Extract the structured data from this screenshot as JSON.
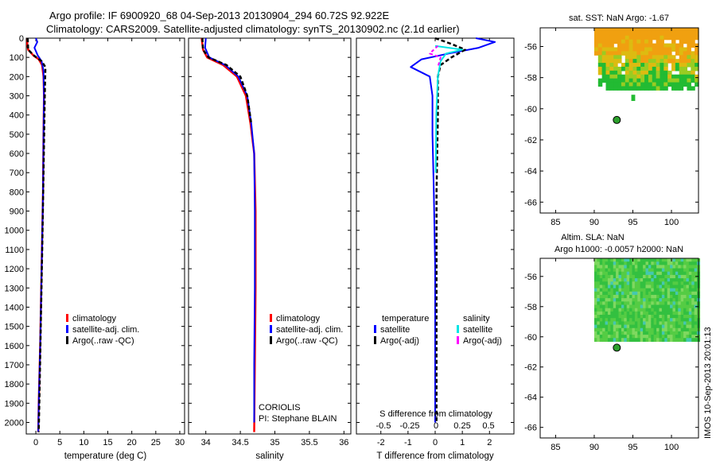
{
  "header": {
    "title_line1": "Argo profile: IF 6900920_68 04-Sep-2013 20130904_294 60.72S 92.922E",
    "title_line2": "Climatology: CARS2009. Satellite-adjusted climatology: synTS_20130902.nc (2.1d earlier)"
  },
  "footer_stamp": "IMOS 10-Sep-2013 20:01:13",
  "colors": {
    "red": "#ff0000",
    "blue": "#0000ff",
    "black": "#000000",
    "cyan": "#00e5e5",
    "magenta": "#ff00ff"
  },
  "chart_data": [
    {
      "type": "line",
      "id": "temperature",
      "xlabel": "temperature (deg C)",
      "xlim": [
        -2,
        31
      ],
      "ylim": [
        2060,
        0
      ],
      "xticks": [
        0,
        5,
        10,
        15,
        20,
        25,
        30
      ],
      "yticks": [
        0,
        100,
        200,
        300,
        400,
        500,
        600,
        700,
        800,
        900,
        1000,
        1100,
        1200,
        1300,
        1400,
        1500,
        1600,
        1700,
        1800,
        1900,
        2000
      ],
      "legend": [
        "climatology",
        "satellite-adj. clim.",
        "Argo(..raw -QC)"
      ],
      "series": [
        {
          "name": "climatology",
          "color": "red",
          "width": 2.5,
          "dash": "",
          "points": [
            [
              -1.7,
              0
            ],
            [
              -1.8,
              30
            ],
            [
              -1.6,
              60
            ],
            [
              -0.5,
              90
            ],
            [
              0.6,
              110
            ],
            [
              1.3,
              140
            ],
            [
              1.6,
              200
            ],
            [
              1.7,
              300
            ],
            [
              1.6,
              500
            ],
            [
              1.5,
              800
            ],
            [
              1.2,
              1200
            ],
            [
              0.9,
              1600
            ],
            [
              0.6,
              1900
            ],
            [
              0.5,
              2050
            ]
          ]
        },
        {
          "name": "satellite-adj. clim.",
          "color": "blue",
          "width": 2,
          "dash": "",
          "points": [
            [
              0,
              0
            ],
            [
              0.3,
              20
            ],
            [
              -0.3,
              50
            ],
            [
              0.4,
              90
            ],
            [
              1.2,
              120
            ],
            [
              1.6,
              170
            ],
            [
              1.7,
              300
            ],
            [
              1.6,
              500
            ],
            [
              1.5,
              800
            ],
            [
              1.2,
              1200
            ],
            [
              0.9,
              1600
            ],
            [
              0.6,
              1900
            ],
            [
              0.5,
              2050
            ]
          ]
        },
        {
          "name": "Argo(..raw -QC)",
          "color": "black",
          "width": 2.5,
          "dash": "5,3",
          "points": [
            [
              -1.7,
              0
            ],
            [
              -1.6,
              60
            ],
            [
              -0.4,
              90
            ],
            [
              1.2,
              120
            ],
            [
              2.0,
              150
            ],
            [
              1.9,
              250
            ],
            [
              1.8,
              400
            ],
            [
              1.6,
              700
            ],
            [
              1.4,
              1000
            ],
            [
              1.1,
              1400
            ],
            [
              0.8,
              1800
            ],
            [
              0.6,
              2050
            ]
          ]
        }
      ]
    },
    {
      "type": "line",
      "id": "salinity",
      "xlabel": "salinity",
      "xlim": [
        33.75,
        36.1
      ],
      "ylim": [
        2060,
        0
      ],
      "xticks": [
        34,
        34.5,
        35,
        35.5,
        36
      ],
      "xtick_labels": [
        "34",
        "34.5",
        "35",
        "35.5",
        "36"
      ],
      "legend": [
        "climatology",
        "satellite-adj. clim.",
        "Argo(..raw -QC)"
      ],
      "annotations": [
        "CORIOLIS",
        "PI: Stephane BLAIN"
      ],
      "series": [
        {
          "name": "climatology",
          "color": "red",
          "width": 2.5,
          "dash": "",
          "points": [
            [
              33.94,
              0
            ],
            [
              33.96,
              60
            ],
            [
              34.02,
              100
            ],
            [
              34.25,
              140
            ],
            [
              34.45,
              200
            ],
            [
              34.58,
              300
            ],
            [
              34.65,
              450
            ],
            [
              34.7,
              600
            ],
            [
              34.72,
              900
            ],
            [
              34.72,
              1300
            ],
            [
              34.71,
              1700
            ],
            [
              34.7,
              2050
            ]
          ]
        },
        {
          "name": "satellite-adj. clim.",
          "color": "blue",
          "width": 2,
          "dash": "",
          "points": [
            [
              34.0,
              0
            ],
            [
              33.99,
              50
            ],
            [
              34.05,
              100
            ],
            [
              34.28,
              140
            ],
            [
              34.47,
              200
            ],
            [
              34.6,
              300
            ],
            [
              34.66,
              450
            ],
            [
              34.7,
              600
            ],
            [
              34.71,
              900
            ],
            [
              34.71,
              1300
            ],
            [
              34.7,
              1700
            ],
            [
              34.7,
              2000
            ]
          ]
        },
        {
          "name": "Argo(..raw -QC)",
          "color": "black",
          "width": 2.5,
          "dash": "5,3",
          "points": [
            [
              33.95,
              0
            ],
            [
              33.96,
              60
            ],
            [
              34.04,
              100
            ],
            [
              34.3,
              140
            ],
            [
              34.5,
              200
            ],
            [
              34.6,
              300
            ],
            [
              34.66,
              450
            ]
          ]
        }
      ]
    },
    {
      "type": "line",
      "id": "difference",
      "xlabel": "T difference from climatology",
      "xlim": [
        -2.9,
        2.9
      ],
      "ylim": [
        2060,
        0
      ],
      "xticks": [
        -2,
        -1,
        0,
        1,
        2
      ],
      "s_axis_label": "S difference from climatology",
      "s_xticks": [
        -0.5,
        -0.25,
        0,
        0.25,
        0.5
      ],
      "s_xtick_labels": [
        "-0.5",
        "-0.25",
        "0",
        "0.25",
        "0.5"
      ],
      "legend_groups": [
        {
          "title": "temperature",
          "items": [
            "satellite",
            "Argo(-adj)"
          ]
        },
        {
          "title": "salinity",
          "items": [
            "satellite",
            "Argo(-adj)"
          ]
        }
      ],
      "series": [
        {
          "name": "temperature satellite",
          "color": "blue",
          "width": 2,
          "dash": "",
          "points": [
            [
              1.5,
              0
            ],
            [
              2.2,
              20
            ],
            [
              1.6,
              50
            ],
            [
              0.5,
              80
            ],
            [
              -0.5,
              110
            ],
            [
              -0.9,
              150
            ],
            [
              -0.2,
              200
            ],
            [
              -0.1,
              300
            ],
            [
              -0.1,
              500
            ],
            [
              -0.05,
              800
            ],
            [
              0,
              1200
            ],
            [
              0,
              1600
            ],
            [
              0,
              2000
            ]
          ]
        },
        {
          "name": "temperature Argo(-adj)",
          "color": "black",
          "width": 2.5,
          "dash": "5,3",
          "points": [
            [
              0,
              0
            ],
            [
              0.6,
              30
            ],
            [
              1.1,
              60
            ],
            [
              0.6,
              100
            ],
            [
              0.2,
              140
            ],
            [
              0.1,
              200
            ],
            [
              0.1,
              400
            ],
            [
              0.05,
              800
            ],
            [
              0.05,
              1200
            ],
            [
              0.05,
              1600
            ],
            [
              0.05,
              2000
            ]
          ]
        },
        {
          "name": "salinity satellite",
          "color": "cyan",
          "width": 2,
          "dash": "",
          "points": [
            [
              0,
              40
            ],
            [
              0.5,
              60
            ],
            [
              0.2,
              80
            ],
            [
              0.1,
              120
            ],
            [
              0.05,
              200
            ],
            [
              0.02,
              400
            ],
            [
              0.01,
              700
            ]
          ]
        },
        {
          "name": "salinity Argo(-adj)",
          "color": "magenta",
          "width": 2,
          "dash": "4,3",
          "points": [
            [
              0.05,
              40
            ],
            [
              -0.1,
              80
            ],
            [
              0.1,
              100
            ],
            [
              0.05,
              150
            ]
          ]
        }
      ]
    },
    {
      "type": "heatmap",
      "id": "sst_map",
      "title": "sat. SST: NaN Argo: -1.67",
      "xlim": [
        83,
        103.5
      ],
      "ylim": [
        -66.7,
        -54.8
      ],
      "xticks": [
        85,
        90,
        95,
        100
      ],
      "yticks": [
        -56,
        -58,
        -60,
        -62,
        -64,
        -66
      ],
      "data_extent": {
        "lon": [
          90,
          103.5
        ],
        "lat": [
          -58.7,
          -54.8
        ]
      },
      "marker": {
        "lon": 92.922,
        "lat": -60.72,
        "color": "#2ca02c"
      }
    },
    {
      "type": "heatmap",
      "id": "sla_map",
      "title_line1": "Altim. SLA: NaN",
      "title_line2": "Argo h1000: -0.0057 h2000: NaN",
      "xlim": [
        83,
        103.5
      ],
      "ylim": [
        -66.7,
        -54.8
      ],
      "xticks": [
        85,
        90,
        95,
        100
      ],
      "yticks": [
        -56,
        -58,
        -60,
        -62,
        -64,
        -66
      ],
      "data_extent": {
        "lon": [
          90,
          103.5
        ],
        "lat": [
          -60.1,
          -54.8
        ]
      },
      "marker": {
        "lon": 92.922,
        "lat": -60.72,
        "color": "#2ca02c"
      }
    }
  ]
}
